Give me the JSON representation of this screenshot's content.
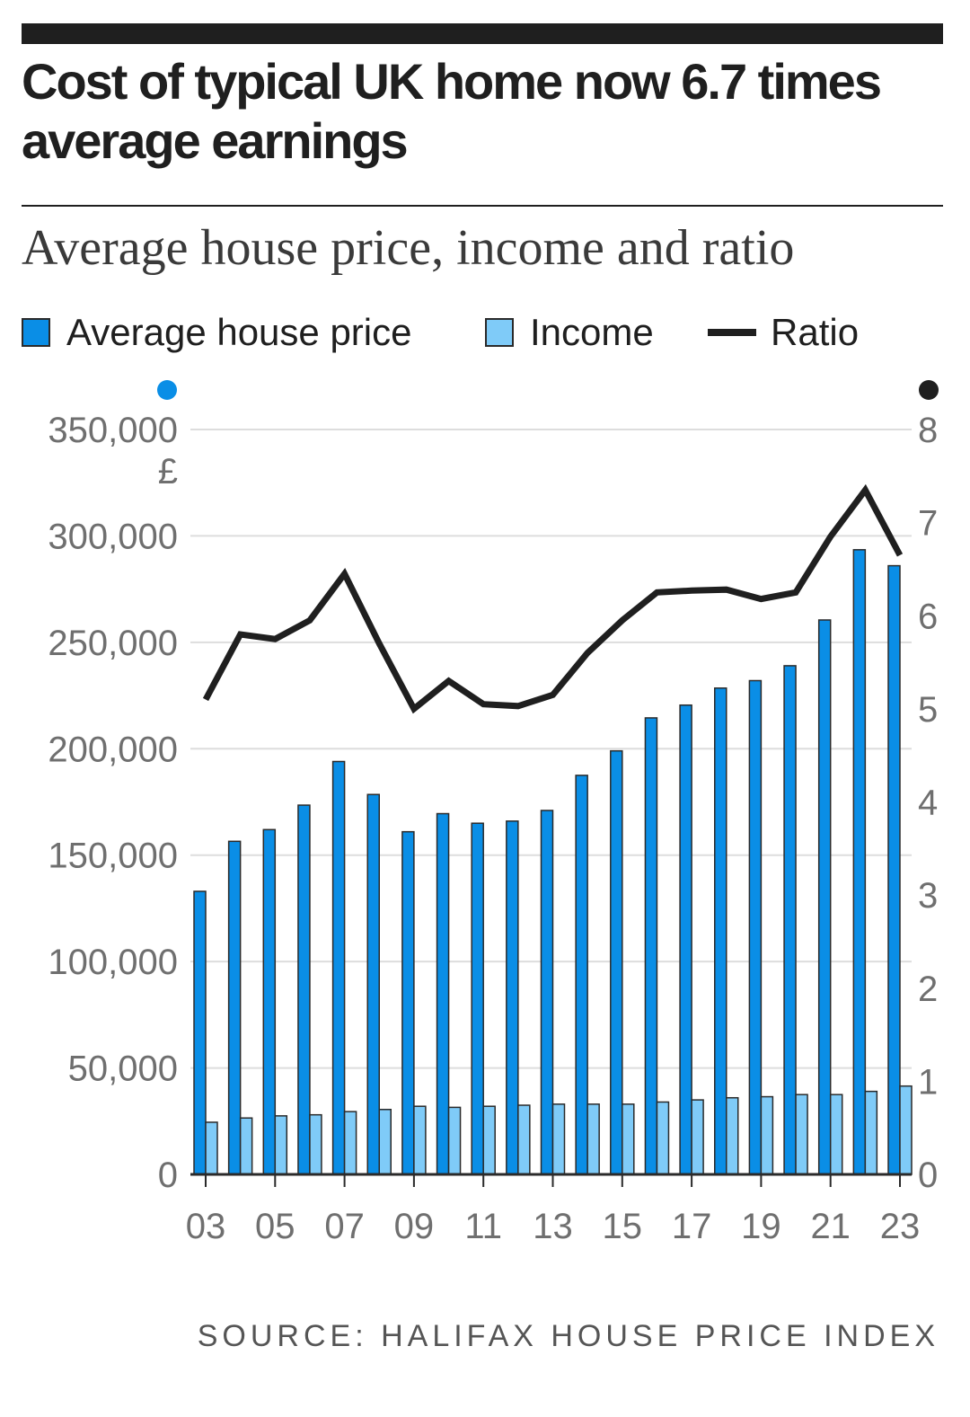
{
  "header": {
    "title": "Cost of typical UK home now 6.7 times average earnings",
    "subtitle": "Average house price, income and ratio"
  },
  "legend": {
    "price_label": "Average house price",
    "income_label": "Income",
    "ratio_label": "Ratio"
  },
  "source": "SOURCE: HALIFAX HOUSE PRICE INDEX",
  "colors": {
    "price": "#0a8ee6",
    "income": "#7fcbf8",
    "ratio": "#1f1f1f",
    "grid": "#dddddd",
    "axis_text": "#6f6f6f"
  },
  "chart_data": {
    "type": "bar",
    "x": [
      2003,
      2004,
      2005,
      2006,
      2007,
      2008,
      2009,
      2010,
      2011,
      2012,
      2013,
      2014,
      2015,
      2016,
      2017,
      2018,
      2019,
      2020,
      2021,
      2022,
      2023
    ],
    "x_tick_labels": [
      "03",
      "05",
      "07",
      "09",
      "11",
      "13",
      "15",
      "17",
      "19",
      "21",
      "23"
    ],
    "series": [
      {
        "name": "Average house price",
        "type": "bar",
        "axis": "left",
        "values": [
          133000,
          156500,
          162000,
          173500,
          194000,
          178500,
          161000,
          169500,
          165000,
          166000,
          171000,
          187500,
          199000,
          214500,
          220500,
          228500,
          232000,
          239000,
          260500,
          293500,
          286000
        ]
      },
      {
        "name": "Income",
        "type": "bar",
        "axis": "left",
        "values": [
          24500,
          26500,
          27500,
          28000,
          29500,
          30500,
          32000,
          31500,
          32000,
          32500,
          33000,
          33000,
          33000,
          34000,
          35000,
          36000,
          36500,
          37500,
          37500,
          39000,
          41500
        ]
      },
      {
        "name": "Ratio",
        "type": "line",
        "axis": "right",
        "values": [
          5.1,
          5.8,
          5.75,
          5.95,
          6.45,
          5.7,
          5.0,
          5.3,
          5.05,
          5.03,
          5.15,
          5.6,
          5.95,
          6.25,
          6.27,
          6.28,
          6.18,
          6.25,
          6.85,
          7.35,
          6.65
        ]
      }
    ],
    "left_axis": {
      "ticks": [
        0,
        50000,
        100000,
        150000,
        200000,
        250000,
        300000,
        350000
      ],
      "tick_labels": [
        "0",
        "50,000",
        "100,000",
        "150,000",
        "200,000",
        "250,000",
        "300,000",
        "350,000"
      ],
      "unit": "£",
      "ylim": [
        0,
        350000
      ]
    },
    "right_axis": {
      "ticks": [
        0,
        1,
        2,
        3,
        4,
        5,
        6,
        7,
        8
      ],
      "tick_labels": [
        "0",
        "1",
        "2",
        "3",
        "4",
        "5",
        "6",
        "7",
        "8"
      ],
      "ylim": [
        0,
        8
      ]
    },
    "grid": true,
    "legend_position": "top-left"
  }
}
